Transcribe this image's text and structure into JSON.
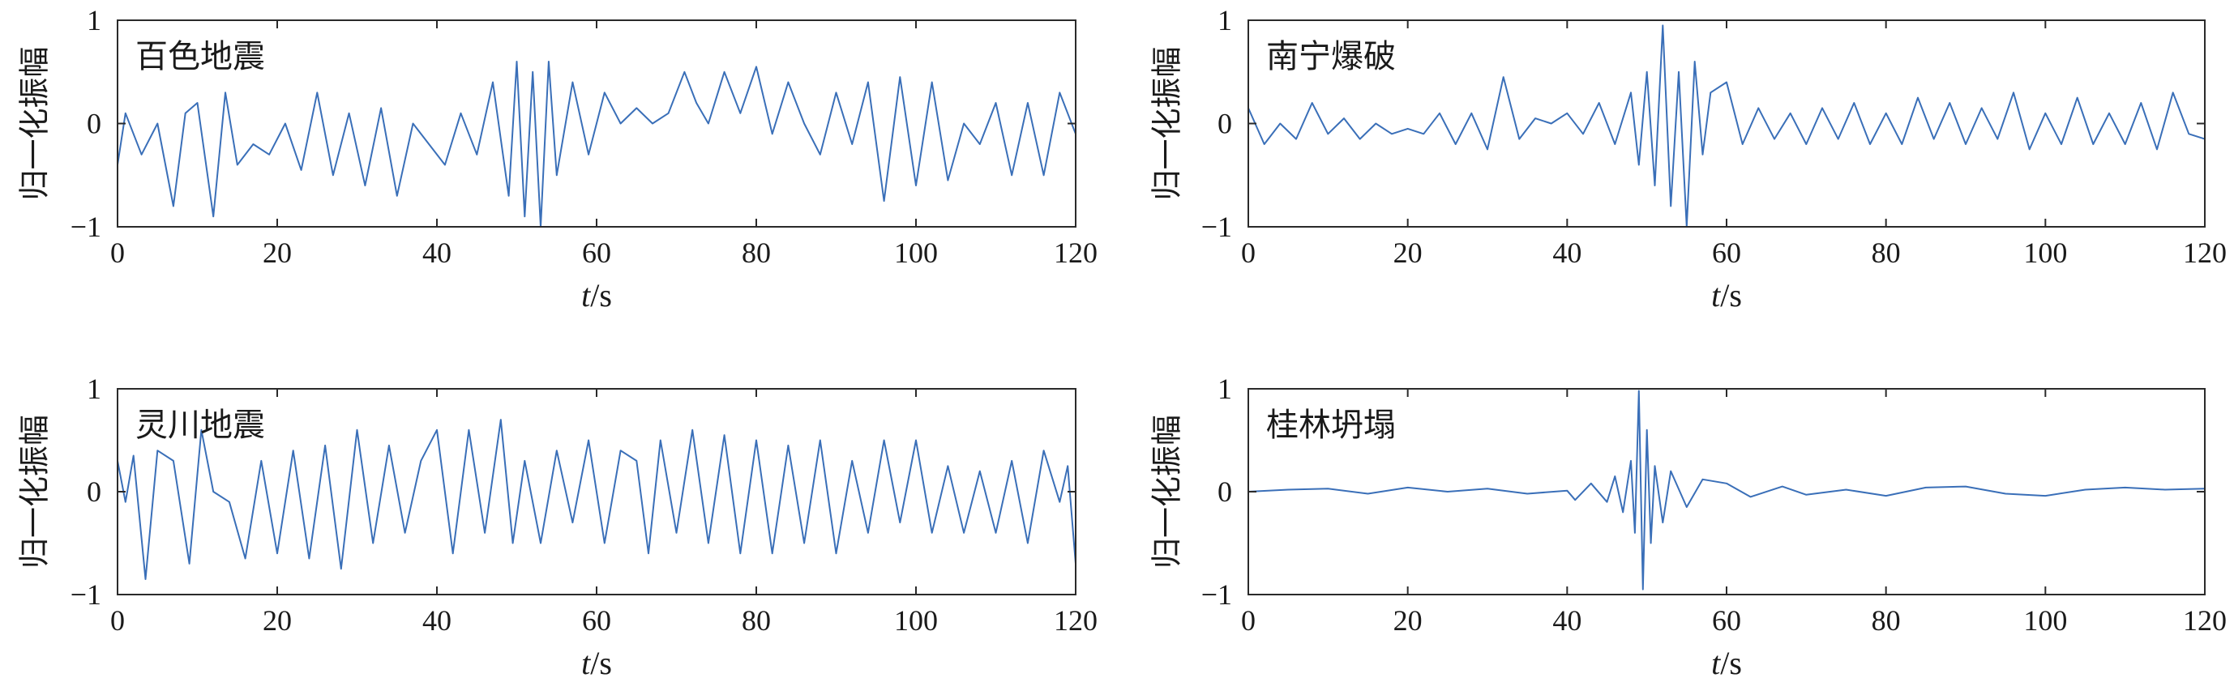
{
  "chart_data": [
    {
      "type": "line",
      "title": "百色地震",
      "xlabel_var": "t",
      "xlabel_unit": "/s",
      "ylabel": "归一化振幅",
      "xlim": [
        0,
        120
      ],
      "ylim": [
        -1,
        1
      ],
      "xticks": [
        "0",
        "20",
        "40",
        "60",
        "80",
        "100",
        "120"
      ],
      "yticks": [
        "1",
        "0",
        "−1"
      ],
      "series": [
        {
          "color": "#3a6fb8",
          "x": [
            0,
            1,
            3,
            5,
            7,
            8.5,
            10,
            12,
            13.5,
            15,
            17,
            19,
            21,
            23,
            25,
            27,
            29,
            31,
            33,
            35,
            37,
            39,
            41,
            43,
            45,
            47,
            49,
            50,
            51,
            52,
            53,
            54,
            55,
            57,
            59,
            61,
            63,
            65,
            67,
            69,
            71,
            72.5,
            74,
            76,
            78,
            80,
            82,
            84,
            86,
            88,
            90,
            92,
            94,
            96,
            98,
            100,
            102,
            104,
            106,
            108,
            110,
            112,
            114,
            116,
            118,
            120
          ],
          "y": [
            -0.4,
            0.1,
            -0.3,
            0.0,
            -0.8,
            0.1,
            0.2,
            -0.9,
            0.3,
            -0.4,
            -0.2,
            -0.3,
            0.0,
            -0.45,
            0.3,
            -0.5,
            0.1,
            -0.6,
            0.15,
            -0.7,
            0.0,
            -0.2,
            -0.4,
            0.1,
            -0.3,
            0.4,
            -0.7,
            0.6,
            -0.9,
            0.5,
            -1.0,
            0.6,
            -0.5,
            0.4,
            -0.3,
            0.3,
            0.0,
            0.15,
            0.0,
            0.1,
            0.5,
            0.2,
            0.0,
            0.5,
            0.1,
            0.55,
            -0.1,
            0.4,
            0.0,
            -0.3,
            0.3,
            -0.2,
            0.4,
            -0.75,
            0.45,
            -0.6,
            0.4,
            -0.55,
            0.0,
            -0.2,
            0.2,
            -0.5,
            0.2,
            -0.5,
            0.3,
            -0.1
          ]
        }
      ]
    },
    {
      "type": "line",
      "title": "南宁爆破",
      "xlabel_var": "t",
      "xlabel_unit": "/s",
      "ylabel": "归一化振幅",
      "xlim": [
        0,
        120
      ],
      "ylim": [
        -1,
        1
      ],
      "xticks": [
        "0",
        "20",
        "40",
        "60",
        "80",
        "100",
        "120"
      ],
      "yticks": [
        "1",
        "0",
        "−1"
      ],
      "series": [
        {
          "color": "#3a6fb8",
          "x": [
            0,
            2,
            4,
            6,
            8,
            10,
            12,
            14,
            16,
            18,
            20,
            22,
            24,
            26,
            28,
            30,
            32,
            34,
            36,
            38,
            40,
            42,
            44,
            46,
            48,
            49,
            50,
            51,
            52,
            53,
            54,
            55,
            56,
            57,
            58,
            60,
            62,
            64,
            66,
            68,
            70,
            72,
            74,
            76,
            78,
            80,
            82,
            84,
            86,
            88,
            90,
            92,
            94,
            96,
            98,
            100,
            102,
            104,
            106,
            108,
            110,
            112,
            114,
            116,
            118,
            120
          ],
          "y": [
            0.15,
            -0.2,
            0.0,
            -0.15,
            0.2,
            -0.1,
            0.05,
            -0.15,
            0.0,
            -0.1,
            -0.05,
            -0.1,
            0.1,
            -0.2,
            0.1,
            -0.25,
            0.45,
            -0.15,
            0.05,
            0.0,
            0.1,
            -0.1,
            0.2,
            -0.2,
            0.3,
            -0.4,
            0.5,
            -0.6,
            0.95,
            -0.8,
            0.5,
            -1.0,
            0.6,
            -0.3,
            0.3,
            0.4,
            -0.2,
            0.15,
            -0.15,
            0.1,
            -0.2,
            0.15,
            -0.15,
            0.2,
            -0.2,
            0.1,
            -0.2,
            0.25,
            -0.15,
            0.2,
            -0.2,
            0.15,
            -0.15,
            0.3,
            -0.25,
            0.1,
            -0.2,
            0.25,
            -0.2,
            0.1,
            -0.2,
            0.2,
            -0.25,
            0.3,
            -0.1,
            -0.15
          ]
        }
      ]
    },
    {
      "type": "line",
      "title": "灵川地震",
      "xlabel_var": "t",
      "xlabel_unit": "/s",
      "ylabel": "归一化振幅",
      "xlim": [
        0,
        120
      ],
      "ylim": [
        -1,
        1
      ],
      "xticks": [
        "0",
        "20",
        "40",
        "60",
        "80",
        "100",
        "120"
      ],
      "yticks": [
        "1",
        "0",
        "−1"
      ],
      "series": [
        {
          "color": "#3a6fb8",
          "x": [
            0,
            1,
            2,
            3.5,
            5,
            7,
            9,
            10.5,
            12,
            14,
            16,
            18,
            20,
            22,
            24,
            26,
            28,
            30,
            32,
            34,
            36,
            38,
            40,
            42,
            44,
            46,
            48,
            49.5,
            51,
            53,
            55,
            57,
            59,
            61,
            63,
            65,
            66.5,
            68,
            70,
            72,
            74,
            76,
            78,
            80,
            82,
            84,
            86,
            88,
            90,
            92,
            94,
            96,
            98,
            100,
            102,
            104,
            106,
            108,
            110,
            112,
            114,
            116,
            118,
            119,
            120
          ],
          "y": [
            0.3,
            -0.1,
            0.35,
            -0.85,
            0.4,
            0.3,
            -0.7,
            0.6,
            0.0,
            -0.1,
            -0.65,
            0.3,
            -0.6,
            0.4,
            -0.65,
            0.45,
            -0.75,
            0.6,
            -0.5,
            0.45,
            -0.4,
            0.3,
            0.6,
            -0.6,
            0.6,
            -0.4,
            0.7,
            -0.5,
            0.3,
            -0.5,
            0.4,
            -0.3,
            0.5,
            -0.5,
            0.4,
            0.3,
            -0.6,
            0.5,
            -0.4,
            0.6,
            -0.5,
            0.55,
            -0.6,
            0.5,
            -0.6,
            0.45,
            -0.5,
            0.5,
            -0.6,
            0.3,
            -0.4,
            0.5,
            -0.3,
            0.5,
            -0.4,
            0.25,
            -0.4,
            0.2,
            -0.4,
            0.3,
            -0.5,
            0.4,
            -0.1,
            0.25,
            -0.7
          ]
        }
      ]
    },
    {
      "type": "line",
      "title": "桂林坍塌",
      "xlabel_var": "t",
      "xlabel_unit": "/s",
      "ylabel": "归一化振幅",
      "xlim": [
        0,
        120
      ],
      "ylim": [
        -1,
        1
      ],
      "xticks": [
        "0",
        "20",
        "40",
        "60",
        "80",
        "100",
        "120"
      ],
      "yticks": [
        "1",
        "0",
        "−1"
      ],
      "series": [
        {
          "color": "#3a6fb8",
          "x": [
            0,
            5,
            10,
            15,
            20,
            25,
            30,
            35,
            40,
            41,
            43,
            45,
            46,
            47,
            48,
            48.5,
            49,
            49.5,
            50,
            50.5,
            51,
            52,
            53,
            55,
            57,
            60,
            63,
            67,
            70,
            75,
            80,
            85,
            90,
            95,
            100,
            105,
            110,
            115,
            120
          ],
          "y": [
            0.0,
            0.02,
            0.03,
            -0.02,
            0.04,
            0.0,
            0.03,
            -0.02,
            0.01,
            -0.08,
            0.08,
            -0.1,
            0.15,
            -0.2,
            0.3,
            -0.4,
            0.98,
            -0.95,
            0.6,
            -0.5,
            0.25,
            -0.3,
            0.2,
            -0.15,
            0.12,
            0.08,
            -0.05,
            0.05,
            -0.03,
            0.02,
            -0.04,
            0.04,
            0.05,
            -0.02,
            -0.04,
            0.02,
            0.04,
            0.02,
            0.03
          ]
        }
      ]
    }
  ]
}
